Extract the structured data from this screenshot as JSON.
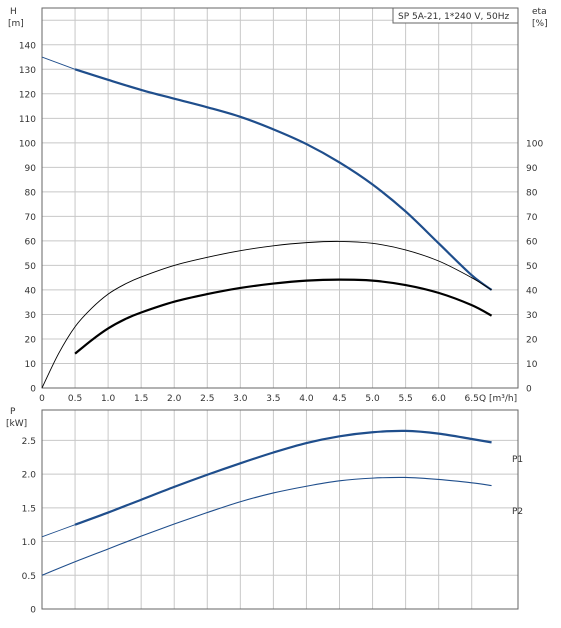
{
  "title": "SP 5A-21, 1*240 V, 50Hz",
  "chart_data": [
    {
      "type": "line",
      "x_label": "Q [m³/h]",
      "y_left_label": "H",
      "y_left_unit": "[m]",
      "y_right_label": "eta",
      "y_right_unit": "[%]",
      "x_ticks": [
        "0",
        "0.5",
        "1.0",
        "1.5",
        "2.0",
        "2.5",
        "3.0",
        "3.5",
        "4.0",
        "4.5",
        "5.0",
        "5.5",
        "6.0",
        "6.5"
      ],
      "x_range": [
        0,
        7.2
      ],
      "y_left_ticks": [
        "0",
        "10",
        "20",
        "30",
        "40",
        "50",
        "60",
        "70",
        "80",
        "90",
        "100",
        "110",
        "120",
        "130",
        "140"
      ],
      "y_left_range": [
        0,
        155
      ],
      "y_right_ticks": [
        "0",
        "10",
        "20",
        "30",
        "40",
        "50",
        "60",
        "70",
        "80",
        "90",
        "100"
      ],
      "grid": true,
      "series": [
        {
          "name": "",
          "axis": "left",
          "style": "head",
          "color": "#1f4e8c",
          "x": [
            0,
            0.5,
            1.0,
            1.5,
            2.0,
            2.5,
            3.0,
            3.5,
            4.0,
            4.5,
            5.0,
            5.5,
            6.0,
            6.5,
            6.8
          ],
          "y": [
            135,
            130,
            125.7,
            121.6,
            118,
            114.5,
            110.6,
            105.5,
            99.5,
            92,
            83,
            72,
            59,
            46,
            40
          ]
        },
        {
          "name": "",
          "axis": "left",
          "style": "eta-thin",
          "color": "#000000",
          "x": [
            0,
            0.25,
            0.5,
            0.75,
            1.0,
            1.25,
            1.5,
            2.0,
            2.5,
            3.0,
            3.5,
            4.0,
            4.5,
            5.0,
            5.5,
            6.0,
            6.5,
            6.8
          ],
          "y": [
            0,
            14,
            25,
            32.5,
            38.3,
            42.3,
            45.3,
            50,
            53.3,
            56,
            58,
            59.3,
            59.8,
            59,
            56.3,
            51.8,
            45,
            40
          ]
        },
        {
          "name": "",
          "axis": "left",
          "style": "eta-thick",
          "color": "#000000",
          "x": [
            0.5,
            0.75,
            1.0,
            1.25,
            1.5,
            2.0,
            2.5,
            3.0,
            3.5,
            4.0,
            4.5,
            5.0,
            5.5,
            6.0,
            6.5,
            6.8
          ],
          "y": [
            14,
            19.5,
            24.3,
            28,
            30.8,
            35.2,
            38.3,
            40.8,
            42.6,
            43.8,
            44.2,
            43.8,
            42,
            38.8,
            33.8,
            29.5
          ]
        }
      ]
    },
    {
      "type": "line",
      "y_label": "P",
      "y_unit": "[kW]",
      "x_range": [
        0,
        7.2
      ],
      "y_ticks": [
        "0",
        "0.5",
        "1.0",
        "1.5",
        "2.0",
        "2.5"
      ],
      "y_range": [
        0,
        2.95
      ],
      "grid": true,
      "series": [
        {
          "name": "P1",
          "color": "#1f4e8c",
          "x": [
            0,
            0.5,
            1.0,
            1.5,
            2.0,
            2.5,
            3.0,
            3.5,
            4.0,
            4.5,
            5.0,
            5.5,
            6.0,
            6.5,
            6.8
          ],
          "y": [
            1.07,
            1.25,
            1.43,
            1.62,
            1.81,
            1.99,
            2.16,
            2.32,
            2.46,
            2.56,
            2.62,
            2.64,
            2.6,
            2.52,
            2.47
          ]
        },
        {
          "name": "P2",
          "color": "#1f4e8c",
          "x": [
            0,
            0.5,
            1.0,
            1.5,
            2.0,
            2.5,
            3.0,
            3.5,
            4.0,
            4.5,
            5.0,
            5.5,
            6.0,
            6.5,
            6.8
          ],
          "y": [
            0.5,
            0.7,
            0.89,
            1.08,
            1.26,
            1.43,
            1.59,
            1.72,
            1.82,
            1.9,
            1.94,
            1.95,
            1.92,
            1.87,
            1.83
          ]
        }
      ]
    }
  ]
}
